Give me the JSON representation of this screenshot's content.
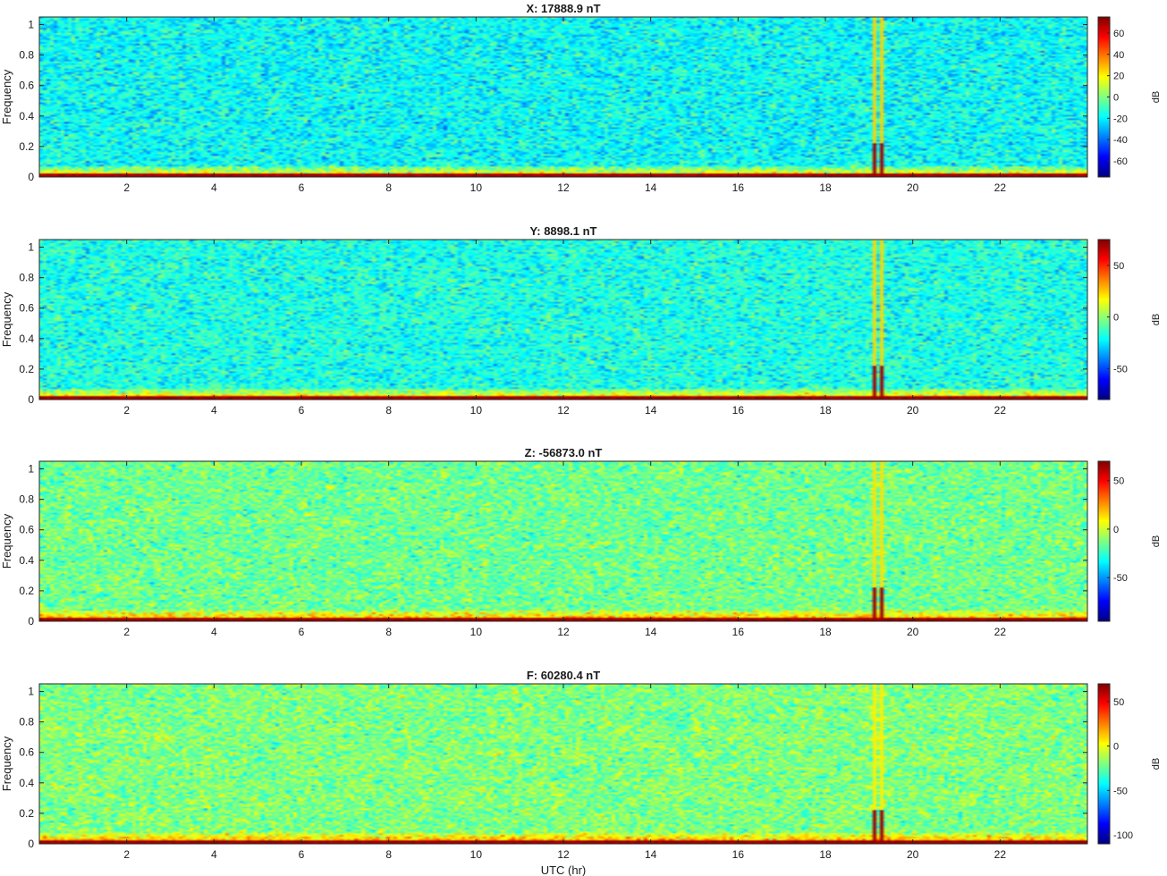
{
  "chart_data": [
    {
      "type": "heatmap",
      "title": "X: 17888.9 nT",
      "xlabel": "",
      "ylabel": "Frequency",
      "xlim": [
        0,
        24
      ],
      "ylim": [
        0,
        1.05
      ],
      "xticks": [
        2,
        4,
        6,
        8,
        10,
        12,
        14,
        16,
        18,
        20,
        22
      ],
      "yticks": [
        0,
        0.2,
        0.4,
        0.6,
        0.8,
        1
      ],
      "colorbar": {
        "label": "dB",
        "clim": [
          -75,
          75
        ],
        "ticks": [
          -60,
          -40,
          -20,
          0,
          20,
          40,
          60
        ]
      },
      "colormap": "jet",
      "field": {
        "background_db": -18,
        "noise_db": 9,
        "low_freq_band_db": 25,
        "dc_line_db": 70
      },
      "spikes_utc_hr": [
        19.1,
        19.32
      ]
    },
    {
      "type": "heatmap",
      "title": "Y: 8898.1 nT",
      "xlabel": "",
      "ylabel": "Frequency",
      "xlim": [
        0,
        24
      ],
      "ylim": [
        0,
        1.05
      ],
      "xticks": [
        2,
        4,
        6,
        8,
        10,
        12,
        14,
        16,
        18,
        20,
        22
      ],
      "yticks": [
        0,
        0.2,
        0.4,
        0.6,
        0.8,
        1
      ],
      "colorbar": {
        "label": "dB",
        "clim": [
          -80,
          75
        ],
        "ticks": [
          -50,
          0,
          50
        ]
      },
      "colormap": "jet",
      "field": {
        "background_db": -18,
        "noise_db": 9,
        "low_freq_band_db": 28,
        "dc_line_db": 70
      },
      "spikes_utc_hr": [
        19.1,
        19.32
      ]
    },
    {
      "type": "heatmap",
      "title": "Z: -56873.0 nT",
      "xlabel": "",
      "ylabel": "Frequency",
      "xlim": [
        0,
        24
      ],
      "ylim": [
        0,
        1.05
      ],
      "xticks": [
        2,
        4,
        6,
        8,
        10,
        12,
        14,
        16,
        18,
        20,
        22
      ],
      "yticks": [
        0,
        0.2,
        0.4,
        0.6,
        0.8,
        1
      ],
      "colorbar": {
        "label": "dB",
        "clim": [
          -95,
          70
        ],
        "ticks": [
          -50,
          0,
          50
        ]
      },
      "colormap": "jet",
      "field": {
        "background_db": -15,
        "noise_db": 10,
        "low_freq_band_db": 25,
        "dc_line_db": 65
      },
      "spikes_utc_hr": [
        19.1,
        19.32
      ]
    },
    {
      "type": "heatmap",
      "title": "F: 60280.4 nT",
      "xlabel": "UTC (hr)",
      "ylabel": "Frequency",
      "xlim": [
        0,
        24
      ],
      "ylim": [
        0,
        1.05
      ],
      "xticks": [
        2,
        4,
        6,
        8,
        10,
        12,
        14,
        16,
        18,
        20,
        22
      ],
      "yticks": [
        0,
        0.2,
        0.4,
        0.6,
        0.8,
        1
      ],
      "colorbar": {
        "label": "dB",
        "clim": [
          -110,
          70
        ],
        "ticks": [
          -100,
          -50,
          0,
          50
        ]
      },
      "colormap": "jet",
      "field": {
        "background_db": -20,
        "noise_db": 11,
        "low_freq_band_db": 25,
        "dc_line_db": 65
      },
      "spikes_utc_hr": [
        19.1,
        19.32
      ]
    }
  ]
}
